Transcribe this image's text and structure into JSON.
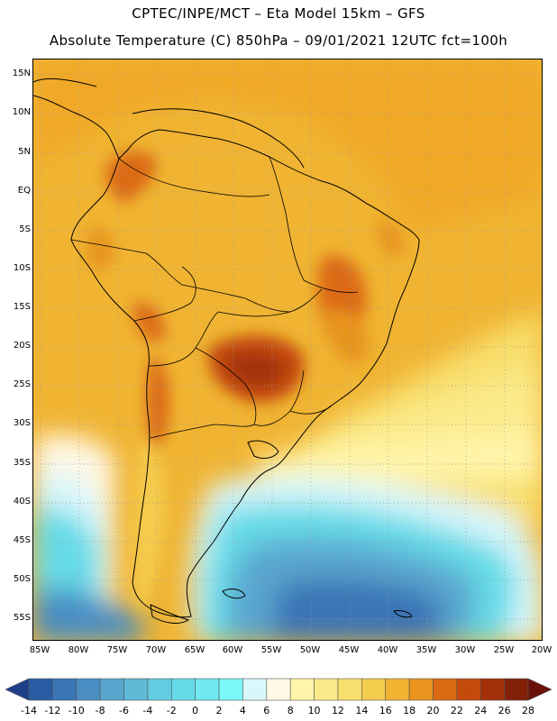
{
  "header": {
    "title_line1": "CPTEC/INPE/MCT –  Eta Model 15km – GFS",
    "title_line2": "Absolute Temperature (C) 850hPa – 09/01/2021 12UTC fct=100h"
  },
  "map": {
    "lat_ticks": [
      "15N",
      "10N",
      "5N",
      "EQ",
      "5S",
      "10S",
      "15S",
      "20S",
      "25S",
      "30S",
      "35S",
      "40S",
      "45S",
      "50S",
      "55S"
    ],
    "lon_ticks": [
      "85W",
      "80W",
      "75W",
      "70W",
      "65W",
      "60W",
      "55W",
      "50W",
      "45W",
      "40W",
      "35W",
      "30W",
      "25W",
      "20W"
    ],
    "region": "South America",
    "field": "Absolute Temperature (C) 850hPa"
  },
  "colorbar": {
    "labels": [
      "-14",
      "-12",
      "-10",
      "-8",
      "-6",
      "-4",
      "-2",
      "0",
      "2",
      "4",
      "6",
      "8",
      "10",
      "12",
      "14",
      "16",
      "18",
      "20",
      "22",
      "24",
      "26",
      "28"
    ],
    "colors": [
      "#1f3f8a",
      "#2a5ca4",
      "#3a75b6",
      "#4a8ec4",
      "#5aa6cf",
      "#5fbad8",
      "#62cce0",
      "#66dbe8",
      "#70e8f0",
      "#7af8fa",
      "#d8f6fb",
      "#fff8e6",
      "#fff4a8",
      "#fcea8a",
      "#f8de6c",
      "#f4cc4e",
      "#f0b432",
      "#e8941e",
      "#dc6a12",
      "#c44a0c",
      "#a4300a",
      "#822008",
      "#6a1208"
    ]
  }
}
